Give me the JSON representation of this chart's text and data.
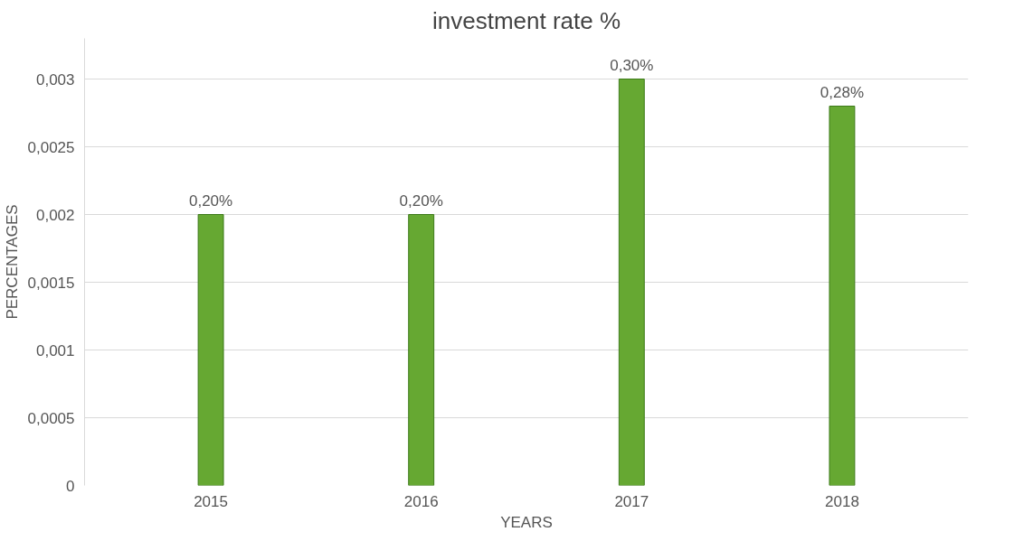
{
  "chart_data": {
    "type": "bar",
    "title": "investment rate %",
    "xlabel": "YEARS",
    "ylabel": "PERCENTAGES",
    "categories": [
      "2015",
      "2016",
      "2017",
      "2018"
    ],
    "series": [
      {
        "color": "#66a832",
        "values": [
          0.002,
          0.002,
          0.003,
          0.0028
        ],
        "value_labels": [
          "0,20%",
          "0,20%",
          "0,30%",
          "0,28%"
        ]
      }
    ],
    "ylim": [
      0,
      0.0033
    ],
    "yticks": [
      {
        "value": 0,
        "label": "0"
      },
      {
        "value": 0.0005,
        "label": "0,0005"
      },
      {
        "value": 0.001,
        "label": "0,001"
      },
      {
        "value": 0.0015,
        "label": "0,0015"
      },
      {
        "value": 0.002,
        "label": "0,002"
      },
      {
        "value": 0.0025,
        "label": "0,0025"
      },
      {
        "value": 0.003,
        "label": "0,003"
      }
    ],
    "grid": "y"
  }
}
